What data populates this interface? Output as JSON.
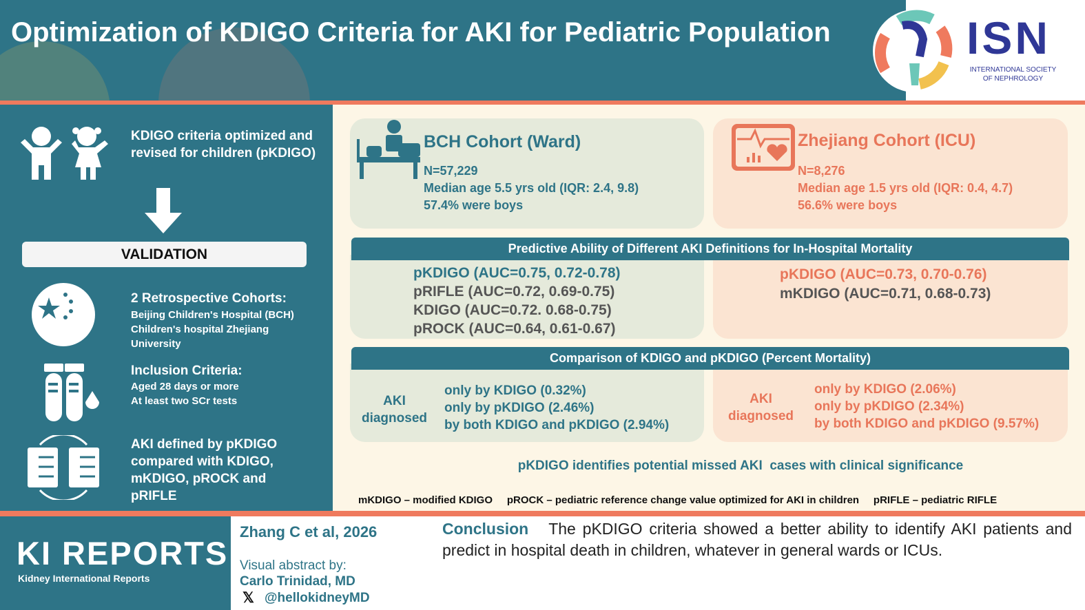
{
  "header": {
    "title": "Optimization of KDIGO Criteria for AKI for Pediatric Population",
    "logo": {
      "abbr": "ISN",
      "name_line1": "INTERNATIONAL SOCIETY",
      "name_line2": "OF NEPHROLOGY"
    }
  },
  "left": {
    "intro": "KDIGO criteria optimized and revised for children (pKDIGO)",
    "validation": "VALIDATION",
    "cohorts_title": "2 Retrospective Cohorts:",
    "cohorts_lines": [
      "Beijing Children's Hospital (BCH)",
      "Children's hospital Zhejiang",
      "University"
    ],
    "inclusion_title": "Inclusion Criteria:",
    "inclusion_lines": [
      "Aged 28 days or more",
      "At least two SCr tests"
    ],
    "aki_def": "AKI defined by pKDIGO compared with KDIGO, mKDIGO, pROCK and pRIFLE"
  },
  "cohorts": [
    {
      "title": "BCH Cohort (Ward)",
      "n": "N=57,229",
      "age": "Median age 5.5 yrs old (IQR: 2.4, 9.8)",
      "boys": "57.4% were boys"
    },
    {
      "title": "Zhejiang Cohort (ICU)",
      "n": "N=8,276",
      "age": "Median age 1.5 yrs old (IQR: 0.4, 4.7)",
      "boys": "56.6% were boys"
    }
  ],
  "predictive": {
    "title": "Predictive Ability of Different AKI Definitions for In-Hospital Mortality",
    "bch": [
      "pKDIGO (AUC=0.75, 0.72-0.78)",
      "pRIFLE (AUC=0.72, 0.69-0.75)",
      "KDIGO (AUC=0.72. 0.68-0.75)",
      "pROCK (AUC=0.64, 0.61-0.67)"
    ],
    "zhejiang": [
      "pKDIGO (AUC=0.73, 0.70-0.76)",
      "mKDIGO (AUC=0.71, 0.68-0.73)"
    ]
  },
  "comparison": {
    "title": "Comparison of KDIGO and pKDIGO (Percent Mortality)",
    "label_line1": "AKI",
    "label_line2": "diagnosed",
    "bch": [
      "only by KDIGO (0.32%)",
      "only by pKDIGO (2.46%)",
      "by both KDIGO and pKDIGO (2.94%)"
    ],
    "zhejiang": [
      "only by KDIGO (2.06%)",
      "only by pKDIGO (2.34%)",
      "by both KDIGO and pKDIGO (9.57%)"
    ]
  },
  "takeaway": "pKDIGO identifies potential missed AKI  cases with clinical significance",
  "footnote": "mKDIGO – modified KDIGO     pROCK – pediatric reference change value optimized for AKI in children     pRIFLE – pediatric RIFLE",
  "footer": {
    "journal": "KI REPORTS",
    "journal_sub": "Kidney International Reports",
    "citation": "Zhang C et al, 2026",
    "va_label": "Visual abstract by:",
    "author": "Carlo Trinidad, MD",
    "handle": "@hellokidneyMD",
    "conclusion_label": "Conclusion",
    "conclusion": "The pKDIGO criteria showed a better ability to identify AKI patients and predict in hospital death in children, whatever in general wards or ICUs."
  },
  "colors": {
    "teal": "#2e7487",
    "coral": "#ef7a5e",
    "cream": "#fdf6e6"
  }
}
